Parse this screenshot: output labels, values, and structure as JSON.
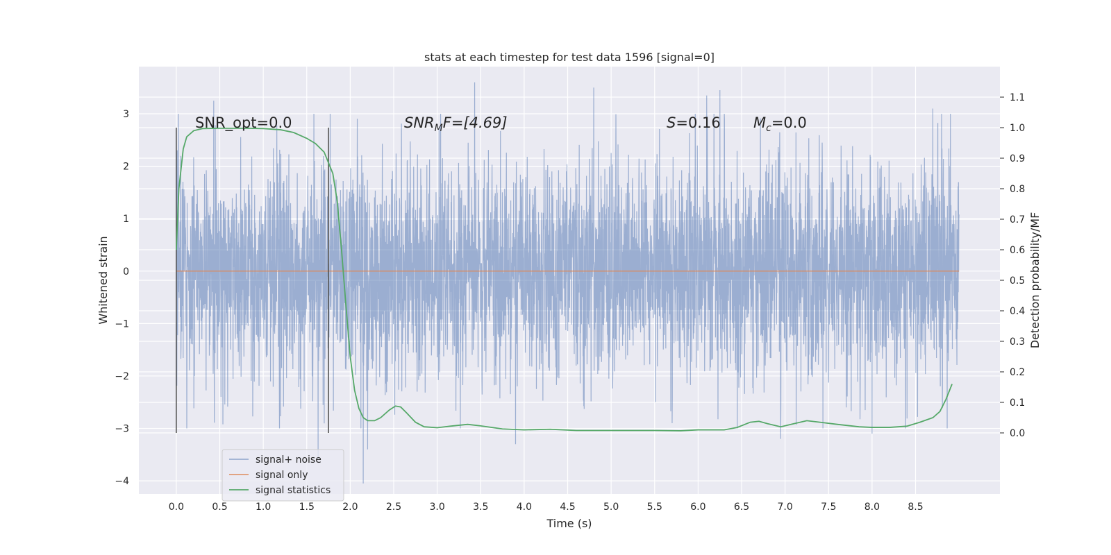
{
  "chart_data": {
    "type": "line",
    "title": "stats at each timestep for test data 1596 [signal=0]",
    "xlabel": "Time (s)",
    "ylabel": "Whitened strain",
    "y2label": "Detection probability/MF",
    "xlim": [
      -0.43,
      9.47
    ],
    "ylim": [
      -4.25,
      3.9
    ],
    "y2lim": [
      -0.2,
      1.2
    ],
    "x_ticks": [
      "0.0",
      "0.5",
      "1.0",
      "1.5",
      "2.0",
      "2.5",
      "3.0",
      "3.5",
      "4.0",
      "4.5",
      "5.0",
      "5.5",
      "6.0",
      "6.5",
      "7.0",
      "7.5",
      "8.0",
      "8.5"
    ],
    "y_ticks": [
      "−4",
      "−3",
      "−2",
      "−1",
      "0",
      "1",
      "2",
      "3"
    ],
    "y2_ticks": [
      "0.0",
      "0.1",
      "0.2",
      "0.3",
      "0.4",
      "0.5",
      "0.6",
      "0.7",
      "0.8",
      "0.9",
      "1.0",
      "1.1"
    ],
    "grid": true,
    "legend_placement": "lower-left",
    "annotations": {
      "snr_opt": "SNR_opt=0.0",
      "snr_mf_main": "SNR",
      "snr_mf_sub": "M",
      "snr_mf_tail": "F=[4.69]",
      "s_main": "S",
      "s_tail": "=0.16",
      "mc_main": "M",
      "mc_sub": "c",
      "mc_tail": "=0.0"
    },
    "window_markers": [
      0.0,
      1.75
    ],
    "series": [
      {
        "name": "signal+ noise",
        "axis": "left",
        "color": "#4c72b0",
        "x_range": [
          0.0,
          9.0
        ],
        "n_samples": 4096,
        "envelope_typical": [
          -2.0,
          2.0
        ],
        "spikes": [
          {
            "x": 0.43,
            "y": 3.25
          },
          {
            "x": 1.77,
            "y": 3.0
          },
          {
            "x": 3.43,
            "y": 3.6
          },
          {
            "x": 4.8,
            "y": 3.5
          },
          {
            "x": 6.1,
            "y": 3.35
          },
          {
            "x": 6.25,
            "y": 3.45
          },
          {
            "x": 8.7,
            "y": 3.1
          },
          {
            "x": 8.9,
            "y": 3.0
          },
          {
            "x": 1.63,
            "y": -3.6
          },
          {
            "x": 2.15,
            "y": -4.05
          },
          {
            "x": 2.2,
            "y": -3.4
          },
          {
            "x": 3.9,
            "y": -3.3
          },
          {
            "x": 6.45,
            "y": -3.0
          },
          {
            "x": 6.95,
            "y": -3.2
          },
          {
            "x": 8.0,
            "y": -3.1
          },
          {
            "x": 0.12,
            "y": -3.0
          },
          {
            "x": 5.7,
            "y": -2.9
          }
        ]
      },
      {
        "name": "signal only",
        "axis": "left",
        "color": "#dd8452",
        "x": [
          0.0,
          9.0
        ],
        "y": [
          0.0,
          0.0
        ]
      },
      {
        "name": "signal statistics",
        "axis": "right",
        "color": "#55a868",
        "x": [
          0.0,
          0.03,
          0.08,
          0.12,
          0.2,
          0.3,
          0.5,
          0.8,
          1.0,
          1.2,
          1.35,
          1.5,
          1.6,
          1.7,
          1.8,
          1.85,
          1.9,
          1.95,
          2.0,
          2.05,
          2.1,
          2.15,
          2.2,
          2.28,
          2.35,
          2.45,
          2.52,
          2.58,
          2.65,
          2.75,
          2.85,
          3.0,
          3.15,
          3.35,
          3.5,
          3.75,
          4.0,
          4.3,
          4.6,
          5.0,
          5.5,
          5.8,
          6.0,
          6.3,
          6.45,
          6.6,
          6.7,
          6.8,
          6.95,
          7.1,
          7.25,
          7.4,
          7.6,
          7.85,
          8.0,
          8.2,
          8.4,
          8.55,
          8.7,
          8.78,
          8.85,
          8.92
        ],
        "y": [
          0.6,
          0.8,
          0.93,
          0.97,
          0.99,
          0.997,
          0.998,
          0.998,
          0.997,
          0.993,
          0.984,
          0.965,
          0.948,
          0.92,
          0.85,
          0.76,
          0.6,
          0.42,
          0.25,
          0.14,
          0.08,
          0.05,
          0.04,
          0.04,
          0.05,
          0.075,
          0.088,
          0.085,
          0.065,
          0.035,
          0.02,
          0.017,
          0.022,
          0.028,
          0.023,
          0.013,
          0.01,
          0.012,
          0.008,
          0.008,
          0.008,
          0.007,
          0.01,
          0.01,
          0.018,
          0.035,
          0.038,
          0.03,
          0.02,
          0.03,
          0.04,
          0.035,
          0.028,
          0.02,
          0.018,
          0.018,
          0.022,
          0.035,
          0.05,
          0.07,
          0.11,
          0.16
        ]
      }
    ]
  }
}
